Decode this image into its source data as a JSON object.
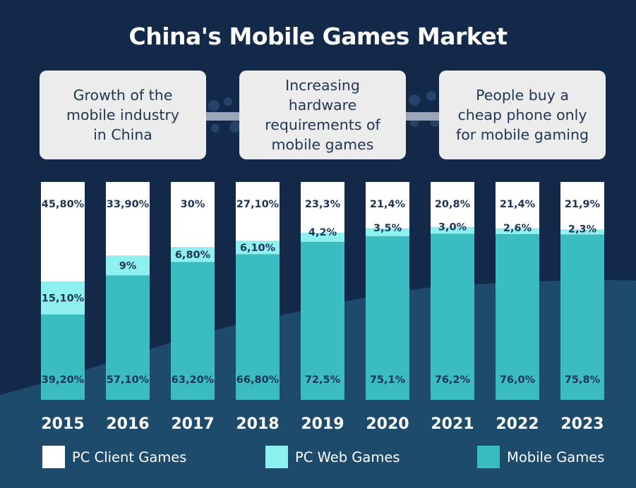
{
  "title": "China's Mobile Games Market",
  "reasons": [
    "Growth of the\nmobile industry\nin China",
    "Increasing\nhardware\nrequirements of\nmobile games",
    "People buy a\ncheap phone only\nfor mobile gaming"
  ],
  "colors": {
    "background": "#13294a",
    "wave": "#1e4a6c",
    "pc_client": "#ffffff",
    "pc_web": "#8ff0f0",
    "mobile": "#3bbcc1",
    "label_text": "#1f3556"
  },
  "chart_data": {
    "type": "bar",
    "stacked": true,
    "orientation": "vertical",
    "categories": [
      "2015",
      "2016",
      "2017",
      "2018",
      "2019",
      "2020",
      "2021",
      "2022",
      "2023"
    ],
    "series": [
      {
        "name": "Mobile Games",
        "values": [
          39.2,
          57.1,
          63.2,
          66.8,
          72.5,
          75.1,
          76.2,
          76.0,
          75.8
        ],
        "labels": [
          "39,20%",
          "57,10%",
          "63,20%",
          "66,80%",
          "72,5%",
          "75,1%",
          "76,2%",
          "76,0%",
          "75,8%"
        ]
      },
      {
        "name": "PC Web Games",
        "values": [
          15.1,
          9,
          6.8,
          6.1,
          4.2,
          3.5,
          3.0,
          2.6,
          2.3
        ],
        "labels": [
          "15,10%",
          "9%",
          "6,80%",
          "6,10%",
          "4,2%",
          "3,5%",
          "3,0%",
          "2,6%",
          "2,3%"
        ]
      },
      {
        "name": "PC Client Games",
        "values": [
          45.8,
          33.9,
          30,
          27.1,
          23.3,
          21.4,
          20.8,
          21.4,
          21.9
        ],
        "labels": [
          "45,80%",
          "33,90%",
          "30%",
          "27,10%",
          "23,3%",
          "21,4%",
          "20,8%",
          "21,4%",
          "21,9%"
        ]
      }
    ],
    "ylim": [
      0,
      100
    ],
    "grid": false,
    "legend_position": "bottom",
    "legend": [
      "PC Client Games",
      "PC Web Games",
      "Mobile Games"
    ]
  }
}
